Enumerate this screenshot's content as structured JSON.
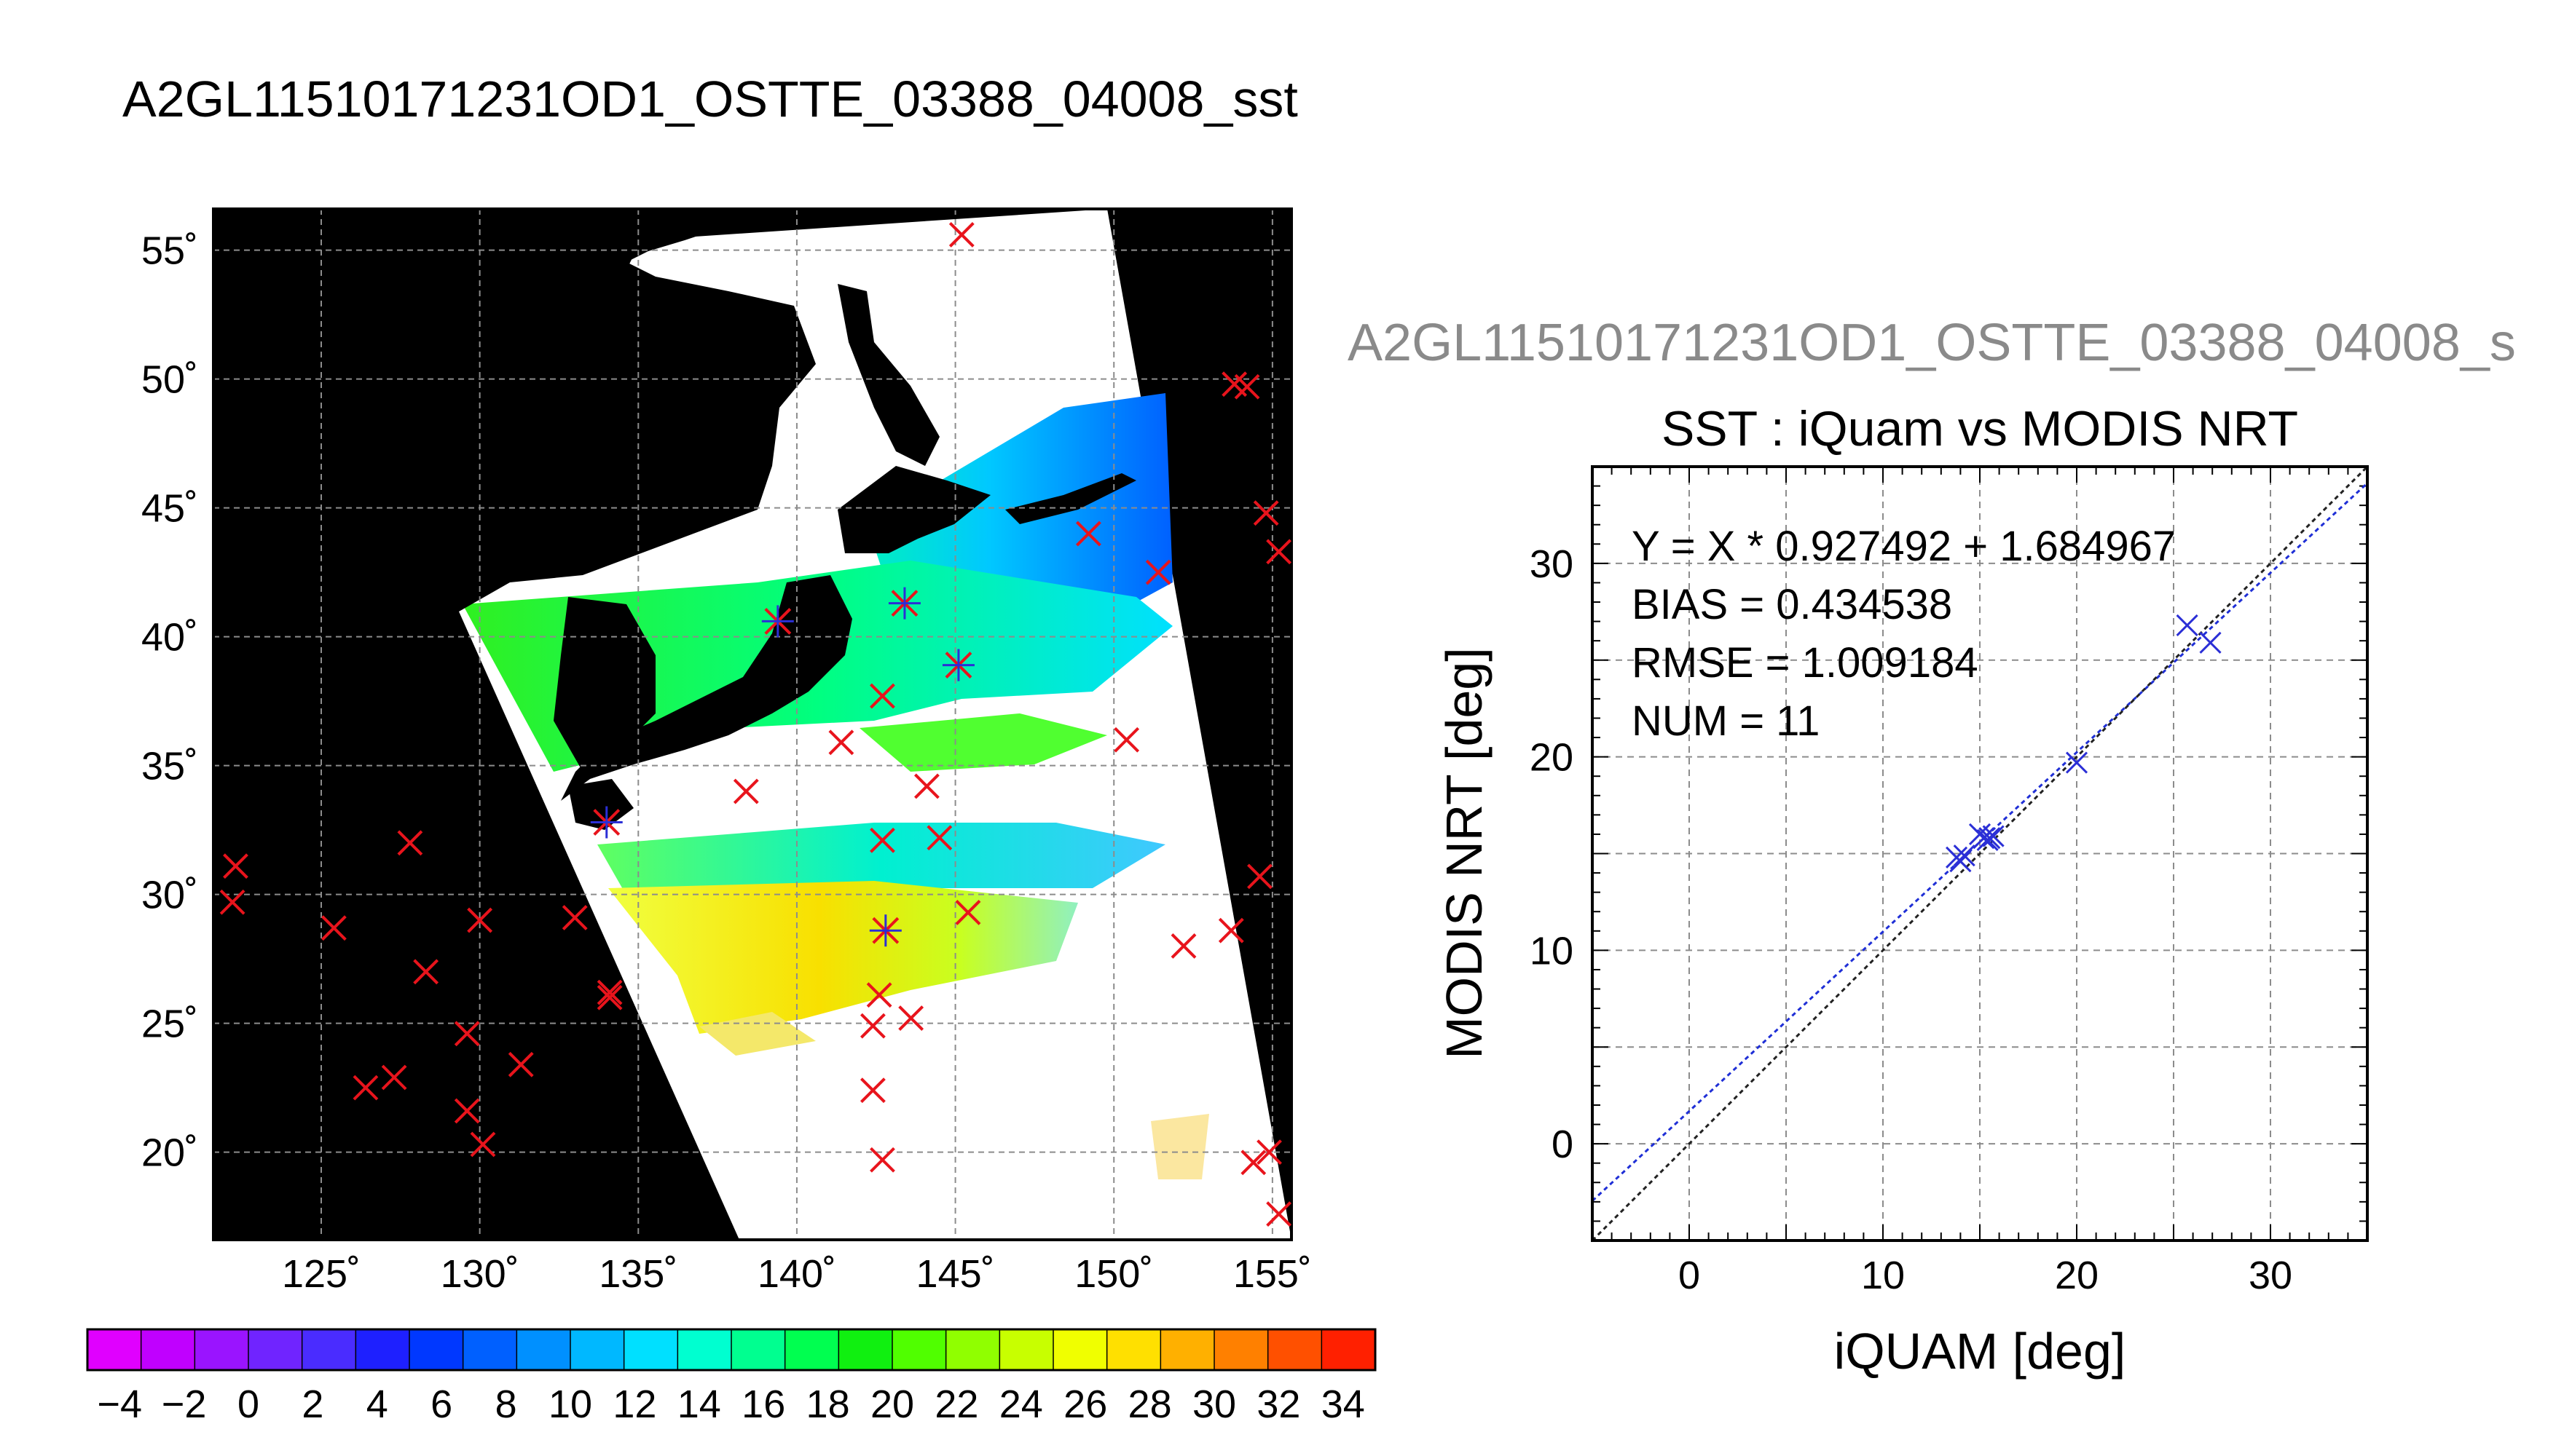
{
  "page_title": "A2GL11510171231OD1_OSTTE_03388_04008_sst",
  "colors": {
    "map_background": "#000000",
    "nodata": "#ffffff",
    "in_situ_marker": "#e8141c",
    "matchup_marker": "#2b2fd6",
    "grid": "#8c8c8c",
    "fit_line": "#1f2fd6",
    "one_to_one_line": "#222222",
    "subtitle_text": "#8a8a8a"
  },
  "chart_data": [
    {
      "type": "heatmap",
      "title": "A2GL11510171231OD1_OSTTE_03388_04008_sst",
      "description_of_axes": "map",
      "x_ticks": [
        "125˚",
        "130˚",
        "135˚",
        "140˚",
        "145˚",
        "150˚",
        "155˚"
      ],
      "x_tick_values": [
        125,
        130,
        135,
        140,
        145,
        150,
        155
      ],
      "y_ticks": [
        "55˚",
        "50˚",
        "45˚",
        "40˚",
        "35˚",
        "30˚",
        "25˚",
        "20˚"
      ],
      "y_tick_values": [
        55,
        50,
        45,
        40,
        35,
        30,
        25,
        20
      ],
      "xlim": [
        121.6,
        155.6
      ],
      "ylim": [
        16.6,
        56.6
      ],
      "grid": true,
      "colorbar": {
        "ticks": [
          "−4",
          "−2",
          "0",
          "2",
          "4",
          "6",
          "8",
          "10",
          "12",
          "14",
          "16",
          "18",
          "20",
          "22",
          "24",
          "26",
          "28",
          "30",
          "32",
          "34"
        ],
        "range": [
          -5,
          35
        ],
        "colors": [
          "#e000ff",
          "#c000ff",
          "#9a14ff",
          "#7024ff",
          "#4a2cff",
          "#1e20ff",
          "#0038ff",
          "#0060ff",
          "#0090ff",
          "#00b8ff",
          "#00e0ff",
          "#00ffd0",
          "#00ff90",
          "#00ff50",
          "#10f010",
          "#50ff00",
          "#90ff00",
          "#c8ff00",
          "#f0ff00",
          "#ffe000",
          "#ffb000",
          "#ff8000",
          "#ff5000",
          "#ff2000"
        ]
      },
      "in_situ_markers": [
        [
          122.3,
          31.1
        ],
        [
          122.2,
          29.7
        ],
        [
          125.4,
          28.7
        ],
        [
          126.4,
          22.5
        ],
        [
          127.8,
          32.0
        ],
        [
          128.3,
          27.0
        ],
        [
          129.6,
          24.6
        ],
        [
          129.6,
          21.6
        ],
        [
          130.0,
          29.0
        ],
        [
          130.1,
          20.3
        ],
        [
          131.3,
          23.4
        ],
        [
          127.3,
          22.9
        ],
        [
          133.0,
          29.1
        ],
        [
          134.1,
          26.0
        ],
        [
          134.1,
          26.2
        ],
        [
          138.4,
          34.0
        ],
        [
          141.4,
          35.9
        ],
        [
          142.7,
          37.7
        ],
        [
          142.7,
          32.1
        ],
        [
          144.1,
          34.2
        ],
        [
          144.5,
          32.2
        ],
        [
          145.4,
          29.3
        ],
        [
          142.4,
          24.9
        ],
        [
          142.6,
          26.1
        ],
        [
          143.6,
          25.2
        ],
        [
          142.4,
          22.4
        ],
        [
          142.7,
          19.7
        ],
        [
          149.2,
          44.0
        ],
        [
          151.4,
          42.5
        ],
        [
          150.4,
          36.0
        ],
        [
          152.2,
          28.0
        ],
        [
          153.7,
          28.6
        ],
        [
          154.6,
          30.7
        ],
        [
          154.8,
          44.8
        ],
        [
          155.2,
          43.3
        ],
        [
          153.8,
          49.8
        ],
        [
          154.2,
          49.7
        ],
        [
          145.2,
          55.6
        ],
        [
          154.4,
          19.6
        ],
        [
          154.9,
          20.0
        ],
        [
          155.2,
          17.6
        ]
      ],
      "matchup_markers": [
        [
          134.0,
          32.8
        ],
        [
          139.4,
          40.6
        ],
        [
          143.4,
          41.3
        ],
        [
          145.1,
          38.9
        ],
        [
          142.8,
          28.6
        ]
      ]
    },
    {
      "type": "scatter",
      "title": "SST : iQuam vs MODIS NRT",
      "subtitle": "A2GL11510171231OD1_OSTTE_03388_04008_s",
      "xlabel": "iQUAM [deg]",
      "ylabel": "MODIS NRT [deg]",
      "xlim": [
        -5,
        35
      ],
      "ylim": [
        -5,
        35
      ],
      "x_ticks": [
        0,
        10,
        20,
        30
      ],
      "y_ticks": [
        0,
        10,
        20,
        30
      ],
      "grid": true,
      "annotations": [
        "Y = X * 0.927492 + 1.684967",
        "BIAS = 0.434538",
        "RMSE = 1.009184",
        "NUM = 11"
      ],
      "fit": {
        "slope": 0.927492,
        "intercept": 1.684967
      },
      "x": [
        13.8,
        14.0,
        14.2,
        15.0,
        15.2,
        15.4,
        15.5,
        15.7,
        20.0,
        25.7,
        26.9
      ],
      "y": [
        14.8,
        14.6,
        14.9,
        16.0,
        15.8,
        15.7,
        15.8,
        15.9,
        19.7,
        26.8,
        25.9
      ]
    }
  ]
}
